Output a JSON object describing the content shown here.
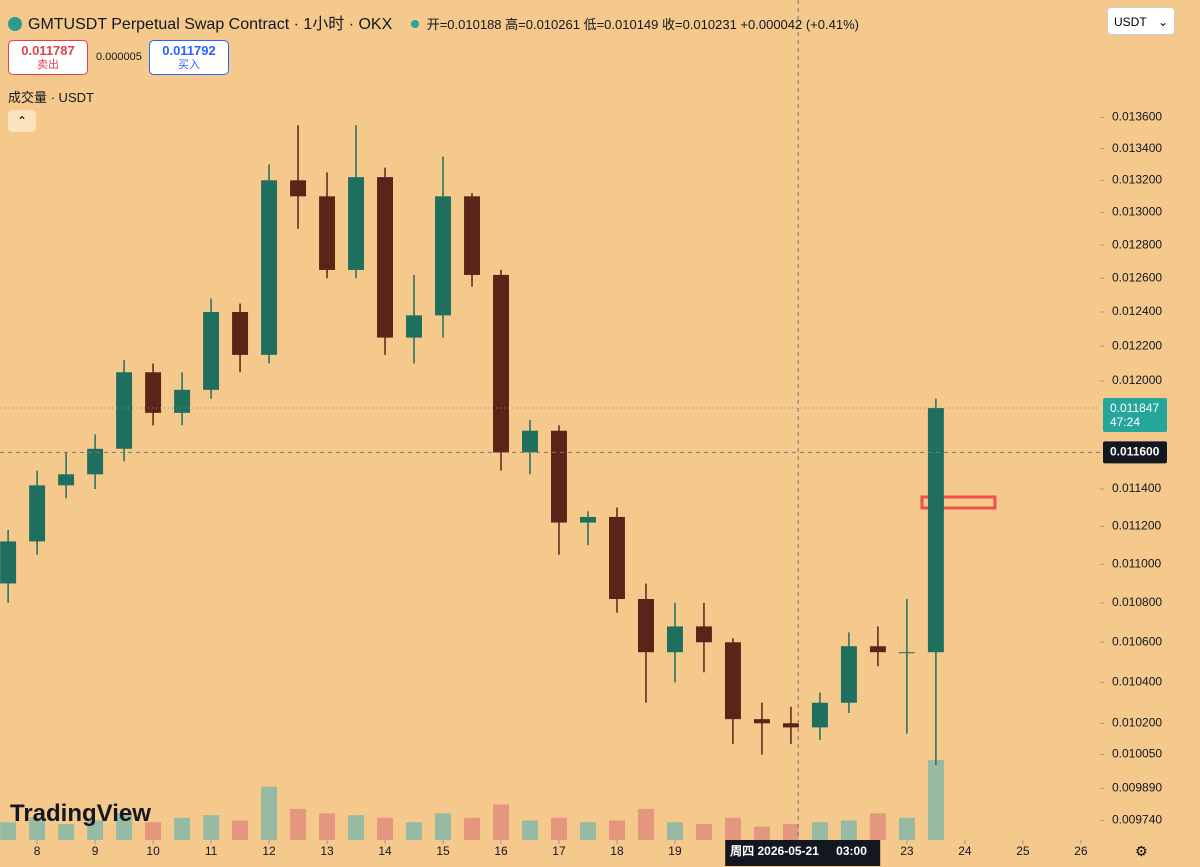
{
  "header": {
    "title": "GMTUSDT Perpetual Swap Contract · 1小时 · OKX",
    "ohlc": "开=0.010188 高=0.010261 低=0.010149 收=0.010231 +0.000042 (+0.41%)",
    "sell_price": "0.011787",
    "sell_label": "卖出",
    "spread": "0.000005",
    "buy_price": "0.011792",
    "buy_label": "买入",
    "volume_label": "成交量 · USDT",
    "currency": "USDT",
    "logo": "TradingView"
  },
  "chart_data": {
    "type": "candlestick",
    "log_scale": true,
    "up_color": "#1f6f5f",
    "down_color": "#5a2418",
    "x": [
      7.5,
      8,
      8.5,
      9,
      9.5,
      10,
      10.5,
      11,
      11.5,
      12,
      12.5,
      13,
      13.5,
      14,
      14.5,
      15,
      15.5,
      16,
      16.5,
      17,
      17.5,
      18,
      18.5,
      19,
      19.5,
      20,
      20.5,
      21,
      21.5,
      22,
      22.5,
      23,
      23.5
    ],
    "open": [
      0.0109,
      0.01112,
      0.01142,
      0.01148,
      0.01162,
      0.01205,
      0.01182,
      0.01195,
      0.0124,
      0.01215,
      0.0132,
      0.0131,
      0.01265,
      0.01322,
      0.01225,
      0.01238,
      0.0131,
      0.01262,
      0.0116,
      0.01172,
      0.01122,
      0.01125,
      0.01082,
      0.01055,
      0.01068,
      0.0106,
      0.01022,
      0.0102,
      0.01018,
      0.0103,
      0.01058,
      0.01055,
      0.01055
    ],
    "high": [
      0.01118,
      0.0115,
      0.0116,
      0.0117,
      0.01212,
      0.0121,
      0.01205,
      0.01248,
      0.01245,
      0.0133,
      0.01355,
      0.01325,
      0.01355,
      0.01328,
      0.01262,
      0.01335,
      0.01312,
      0.01265,
      0.01178,
      0.01175,
      0.01128,
      0.0113,
      0.0109,
      0.0108,
      0.0108,
      0.01062,
      0.0103,
      0.01028,
      0.01035,
      0.01065,
      0.01068,
      0.01082,
      0.0119
    ],
    "low": [
      0.0108,
      0.01105,
      0.01135,
      0.0114,
      0.01155,
      0.01175,
      0.01175,
      0.0119,
      0.01205,
      0.0121,
      0.0129,
      0.0126,
      0.0126,
      0.01215,
      0.0121,
      0.01225,
      0.01255,
      0.0115,
      0.01148,
      0.01105,
      0.0111,
      0.01075,
      0.0103,
      0.0104,
      0.01045,
      0.0101,
      0.01005,
      0.0101,
      0.01012,
      0.01025,
      0.01048,
      0.01015,
      0.01
    ],
    "close": [
      0.01112,
      0.01142,
      0.01148,
      0.01162,
      0.01205,
      0.01182,
      0.01195,
      0.0124,
      0.01215,
      0.0132,
      0.0131,
      0.01265,
      0.01322,
      0.01225,
      0.01238,
      0.0131,
      0.01262,
      0.0116,
      0.01172,
      0.01122,
      0.01125,
      0.01082,
      0.01055,
      0.01068,
      0.0106,
      0.01022,
      0.0102,
      0.01018,
      0.0103,
      0.01058,
      0.01055,
      0.01055,
      0.011847
    ],
    "volume": [
      20,
      25,
      18,
      22,
      30,
      20,
      25,
      28,
      22,
      60,
      35,
      30,
      28,
      25,
      20,
      30,
      25,
      40,
      22,
      25,
      20,
      22,
      35,
      20,
      18,
      25,
      15,
      18,
      20,
      22,
      30,
      25,
      90
    ],
    "xlim": [
      7.36,
      26.33
    ],
    "xticks": [
      8,
      9,
      10,
      11,
      12,
      13,
      14,
      15,
      16,
      17,
      18,
      19,
      23,
      24,
      25,
      26
    ],
    "ylim": [
      0.00965,
      0.01438
    ],
    "yticks": [
      {
        "value": 0.0136,
        "label": "0.013600"
      },
      {
        "value": 0.0134,
        "label": "0.013400"
      },
      {
        "value": 0.0132,
        "label": "0.013200"
      },
      {
        "value": 0.013,
        "label": "0.013000"
      },
      {
        "value": 0.0128,
        "label": "0.012800"
      },
      {
        "value": 0.0126,
        "label": "0.012600"
      },
      {
        "value": 0.0124,
        "label": "0.012400"
      },
      {
        "value": 0.0122,
        "label": "0.012200"
      },
      {
        "value": 0.012,
        "label": "0.012000"
      },
      {
        "value": 0.0114,
        "label": "0.011400"
      },
      {
        "value": 0.0112,
        "label": "0.011200"
      },
      {
        "value": 0.011,
        "label": "0.011000"
      },
      {
        "value": 0.0108,
        "label": "0.010800"
      },
      {
        "value": 0.0106,
        "label": "0.010600"
      },
      {
        "value": 0.0104,
        "label": "0.010400"
      },
      {
        "value": 0.0102,
        "label": "0.010200"
      },
      {
        "value": 0.01005,
        "label": "0.010050"
      },
      {
        "value": 0.00989,
        "label": "0.009890"
      },
      {
        "value": 0.00974,
        "label": "0.009740"
      }
    ],
    "last_price": {
      "value": 0.011847,
      "label": "0.011847",
      "countdown": "47:24",
      "color": "#26a69a"
    },
    "crosshair": {
      "x": 21.125,
      "price": {
        "value": 0.0116,
        "label": "0.011600"
      },
      "date": "周四 2026-05-21",
      "hour": "03:00"
    }
  }
}
